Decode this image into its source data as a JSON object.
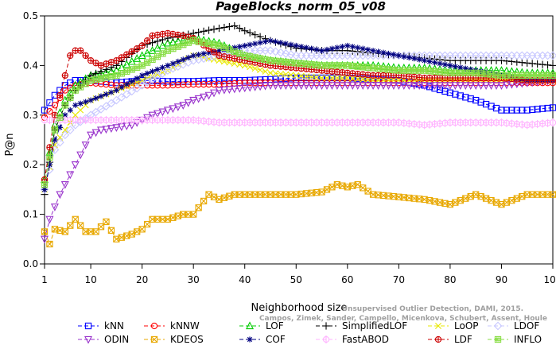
{
  "chart_data": {
    "type": "line",
    "title": "PageBlocks_norm_05_v08",
    "xlabel": "Neighborhood size",
    "ylabel": "P@n",
    "xlim": [
      1,
      100
    ],
    "ylim": [
      0,
      0.5
    ],
    "x_ticks": [
      1,
      10,
      20,
      30,
      40,
      50,
      60,
      70,
      80,
      90,
      100
    ],
    "x_tick_labels": [
      "1",
      "10",
      "20",
      "30",
      "40",
      "50",
      "60",
      "70",
      "80",
      "90",
      "100"
    ],
    "y_ticks": [
      0,
      0.1,
      0.2,
      0.3,
      0.4,
      0.5
    ],
    "y_tick_labels": [
      "0.0",
      "0.1",
      "0.2",
      "0.3",
      "0.4",
      "0.5"
    ],
    "legend_placement": "bottom",
    "watermark_lines": [
      "Unsupervised Outlier Detection, DAMI, 2015.",
      "Campos, Zimek, Sander, Campello, Micenkova, Schubert, Assent, Houle"
    ],
    "series": [
      {
        "name": "kNN",
        "color": "#0000ff",
        "marker": "square",
        "points": [
          [
            1,
            0.31
          ],
          [
            3,
            0.34
          ],
          [
            5,
            0.36
          ],
          [
            7,
            0.37
          ],
          [
            10,
            0.37
          ],
          [
            15,
            0.365
          ],
          [
            20,
            0.37
          ],
          [
            25,
            0.368
          ],
          [
            30,
            0.368
          ],
          [
            35,
            0.37
          ],
          [
            40,
            0.37
          ],
          [
            45,
            0.372
          ],
          [
            50,
            0.375
          ],
          [
            55,
            0.375
          ],
          [
            60,
            0.375
          ],
          [
            65,
            0.372
          ],
          [
            70,
            0.37
          ],
          [
            75,
            0.36
          ],
          [
            80,
            0.345
          ],
          [
            85,
            0.33
          ],
          [
            90,
            0.31
          ],
          [
            95,
            0.31
          ],
          [
            100,
            0.315
          ]
        ]
      },
      {
        "name": "kNNW",
        "color": "#ff0000",
        "marker": "circle",
        "points": [
          [
            1,
            0.295
          ],
          [
            3,
            0.32
          ],
          [
            5,
            0.35
          ],
          [
            7,
            0.36
          ],
          [
            10,
            0.365
          ],
          [
            15,
            0.36
          ],
          [
            20,
            0.36
          ],
          [
            25,
            0.36
          ],
          [
            30,
            0.362
          ],
          [
            35,
            0.362
          ],
          [
            40,
            0.365
          ],
          [
            45,
            0.365
          ],
          [
            50,
            0.365
          ],
          [
            55,
            0.365
          ],
          [
            60,
            0.365
          ],
          [
            65,
            0.365
          ],
          [
            70,
            0.365
          ],
          [
            75,
            0.365
          ],
          [
            80,
            0.365
          ],
          [
            85,
            0.365
          ],
          [
            90,
            0.365
          ],
          [
            95,
            0.365
          ],
          [
            100,
            0.365
          ]
        ]
      },
      {
        "name": "LOF",
        "color": "#00cc00",
        "marker": "triangle-up",
        "points": [
          [
            1,
            0.17
          ],
          [
            3,
            0.28
          ],
          [
            5,
            0.33
          ],
          [
            7,
            0.36
          ],
          [
            10,
            0.38
          ],
          [
            15,
            0.39
          ],
          [
            20,
            0.42
          ],
          [
            25,
            0.445
          ],
          [
            30,
            0.455
          ],
          [
            35,
            0.445
          ],
          [
            40,
            0.42
          ],
          [
            45,
            0.41
          ],
          [
            50,
            0.405
          ],
          [
            55,
            0.4
          ],
          [
            60,
            0.4
          ],
          [
            65,
            0.4
          ],
          [
            70,
            0.395
          ],
          [
            75,
            0.395
          ],
          [
            80,
            0.39
          ],
          [
            85,
            0.39
          ],
          [
            90,
            0.39
          ],
          [
            95,
            0.385
          ],
          [
            100,
            0.385
          ]
        ]
      },
      {
        "name": "SimplifiedLOF",
        "color": "#000000",
        "marker": "plus",
        "points": [
          [
            1,
            0.14
          ],
          [
            3,
            0.27
          ],
          [
            5,
            0.32
          ],
          [
            7,
            0.35
          ],
          [
            10,
            0.38
          ],
          [
            15,
            0.4
          ],
          [
            20,
            0.44
          ],
          [
            25,
            0.455
          ],
          [
            30,
            0.465
          ],
          [
            35,
            0.475
          ],
          [
            38,
            0.48
          ],
          [
            40,
            0.47
          ],
          [
            45,
            0.45
          ],
          [
            50,
            0.435
          ],
          [
            55,
            0.43
          ],
          [
            60,
            0.43
          ],
          [
            65,
            0.425
          ],
          [
            70,
            0.42
          ],
          [
            75,
            0.415
          ],
          [
            80,
            0.41
          ],
          [
            85,
            0.41
          ],
          [
            90,
            0.41
          ],
          [
            95,
            0.405
          ],
          [
            100,
            0.4
          ]
        ]
      },
      {
        "name": "LoOP",
        "color": "#e8e800",
        "marker": "x",
        "points": [
          [
            1,
            0.15
          ],
          [
            3,
            0.24
          ],
          [
            5,
            0.27
          ],
          [
            7,
            0.3
          ],
          [
            10,
            0.33
          ],
          [
            15,
            0.35
          ],
          [
            20,
            0.37
          ],
          [
            25,
            0.39
          ],
          [
            30,
            0.42
          ],
          [
            35,
            0.41
          ],
          [
            40,
            0.4
          ],
          [
            45,
            0.385
          ],
          [
            50,
            0.38
          ],
          [
            55,
            0.375
          ],
          [
            60,
            0.375
          ],
          [
            65,
            0.37
          ],
          [
            70,
            0.37
          ],
          [
            75,
            0.37
          ],
          [
            80,
            0.37
          ],
          [
            85,
            0.37
          ],
          [
            90,
            0.37
          ],
          [
            95,
            0.37
          ],
          [
            100,
            0.37
          ]
        ]
      },
      {
        "name": "LDOF",
        "color": "#c8c8ff",
        "marker": "diamond",
        "points": [
          [
            1,
            0.15
          ],
          [
            3,
            0.23
          ],
          [
            5,
            0.26
          ],
          [
            7,
            0.28
          ],
          [
            10,
            0.3
          ],
          [
            15,
            0.33
          ],
          [
            20,
            0.36
          ],
          [
            25,
            0.39
          ],
          [
            30,
            0.41
          ],
          [
            35,
            0.42
          ],
          [
            40,
            0.43
          ],
          [
            45,
            0.43
          ],
          [
            50,
            0.42
          ],
          [
            55,
            0.42
          ],
          [
            60,
            0.42
          ],
          [
            65,
            0.42
          ],
          [
            70,
            0.42
          ],
          [
            75,
            0.42
          ],
          [
            80,
            0.42
          ],
          [
            85,
            0.42
          ],
          [
            90,
            0.42
          ],
          [
            95,
            0.42
          ],
          [
            100,
            0.42
          ]
        ]
      },
      {
        "name": "ODIN",
        "color": "#9933cc",
        "marker": "triangle-down",
        "points": [
          [
            1,
            0.05
          ],
          [
            2,
            0.09
          ],
          [
            4,
            0.14
          ],
          [
            6,
            0.18
          ],
          [
            8,
            0.22
          ],
          [
            10,
            0.26
          ],
          [
            12,
            0.27
          ],
          [
            15,
            0.275
          ],
          [
            18,
            0.28
          ],
          [
            20,
            0.29
          ],
          [
            22,
            0.3
          ],
          [
            25,
            0.31
          ],
          [
            28,
            0.32
          ],
          [
            30,
            0.33
          ],
          [
            33,
            0.34
          ],
          [
            35,
            0.35
          ],
          [
            40,
            0.355
          ],
          [
            45,
            0.36
          ],
          [
            50,
            0.36
          ],
          [
            55,
            0.36
          ],
          [
            60,
            0.36
          ],
          [
            65,
            0.36
          ],
          [
            70,
            0.36
          ],
          [
            75,
            0.36
          ],
          [
            80,
            0.36
          ],
          [
            85,
            0.36
          ],
          [
            90,
            0.36
          ],
          [
            95,
            0.365
          ],
          [
            100,
            0.37
          ]
        ]
      },
      {
        "name": "KDEOS",
        "color": "#e8a800",
        "marker": "square-x",
        "points": [
          [
            1,
            0.065
          ],
          [
            2,
            0.04
          ],
          [
            3,
            0.07
          ],
          [
            5,
            0.065
          ],
          [
            7,
            0.09
          ],
          [
            9,
            0.065
          ],
          [
            11,
            0.065
          ],
          [
            13,
            0.085
          ],
          [
            15,
            0.05
          ],
          [
            18,
            0.06
          ],
          [
            20,
            0.07
          ],
          [
            22,
            0.09
          ],
          [
            25,
            0.09
          ],
          [
            28,
            0.1
          ],
          [
            30,
            0.1
          ],
          [
            33,
            0.14
          ],
          [
            35,
            0.13
          ],
          [
            38,
            0.14
          ],
          [
            40,
            0.14
          ],
          [
            45,
            0.14
          ],
          [
            50,
            0.14
          ],
          [
            55,
            0.145
          ],
          [
            58,
            0.16
          ],
          [
            60,
            0.155
          ],
          [
            62,
            0.16
          ],
          [
            65,
            0.14
          ],
          [
            70,
            0.135
          ],
          [
            75,
            0.13
          ],
          [
            80,
            0.12
          ],
          [
            85,
            0.14
          ],
          [
            90,
            0.12
          ],
          [
            95,
            0.14
          ],
          [
            100,
            0.14
          ]
        ]
      },
      {
        "name": "COF",
        "color": "#000080",
        "marker": "asterisk",
        "points": [
          [
            1,
            0.15
          ],
          [
            3,
            0.25
          ],
          [
            5,
            0.3
          ],
          [
            7,
            0.32
          ],
          [
            10,
            0.33
          ],
          [
            15,
            0.35
          ],
          [
            20,
            0.38
          ],
          [
            25,
            0.4
          ],
          [
            30,
            0.42
          ],
          [
            35,
            0.43
          ],
          [
            40,
            0.44
          ],
          [
            45,
            0.45
          ],
          [
            50,
            0.44
          ],
          [
            55,
            0.43
          ],
          [
            60,
            0.44
          ],
          [
            65,
            0.43
          ],
          [
            70,
            0.42
          ],
          [
            75,
            0.41
          ],
          [
            80,
            0.4
          ],
          [
            85,
            0.39
          ],
          [
            90,
            0.38
          ],
          [
            95,
            0.37
          ],
          [
            100,
            0.37
          ]
        ]
      },
      {
        "name": "FastABOD",
        "color": "#ffb3ff",
        "marker": "circle-bar",
        "points": [
          [
            1,
            0.29
          ],
          [
            5,
            0.29
          ],
          [
            10,
            0.29
          ],
          [
            15,
            0.29
          ],
          [
            20,
            0.29
          ],
          [
            25,
            0.29
          ],
          [
            30,
            0.29
          ],
          [
            35,
            0.285
          ],
          [
            40,
            0.285
          ],
          [
            45,
            0.285
          ],
          [
            50,
            0.285
          ],
          [
            55,
            0.285
          ],
          [
            60,
            0.285
          ],
          [
            65,
            0.285
          ],
          [
            70,
            0.285
          ],
          [
            75,
            0.28
          ],
          [
            80,
            0.285
          ],
          [
            85,
            0.285
          ],
          [
            90,
            0.285
          ],
          [
            95,
            0.28
          ],
          [
            100,
            0.285
          ]
        ]
      },
      {
        "name": "LDF",
        "color": "#cc0000",
        "marker": "circle-plus",
        "points": [
          [
            1,
            0.17
          ],
          [
            3,
            0.3
          ],
          [
            5,
            0.38
          ],
          [
            6,
            0.42
          ],
          [
            7,
            0.43
          ],
          [
            8,
            0.43
          ],
          [
            10,
            0.41
          ],
          [
            12,
            0.4
          ],
          [
            15,
            0.41
          ],
          [
            20,
            0.44
          ],
          [
            22,
            0.46
          ],
          [
            25,
            0.465
          ],
          [
            28,
            0.46
          ],
          [
            30,
            0.455
          ],
          [
            35,
            0.42
          ],
          [
            40,
            0.41
          ],
          [
            45,
            0.4
          ],
          [
            50,
            0.395
          ],
          [
            55,
            0.39
          ],
          [
            60,
            0.385
          ],
          [
            65,
            0.38
          ],
          [
            70,
            0.38
          ],
          [
            75,
            0.375
          ],
          [
            80,
            0.375
          ],
          [
            85,
            0.375
          ],
          [
            90,
            0.375
          ],
          [
            95,
            0.37
          ],
          [
            100,
            0.37
          ]
        ]
      },
      {
        "name": "INFLO",
        "color": "#88dd44",
        "marker": "square-hash",
        "points": [
          [
            1,
            0.16
          ],
          [
            3,
            0.27
          ],
          [
            5,
            0.32
          ],
          [
            7,
            0.35
          ],
          [
            10,
            0.37
          ],
          [
            15,
            0.38
          ],
          [
            20,
            0.4
          ],
          [
            25,
            0.43
          ],
          [
            30,
            0.45
          ],
          [
            35,
            0.44
          ],
          [
            40,
            0.42
          ],
          [
            45,
            0.41
          ],
          [
            50,
            0.405
          ],
          [
            55,
            0.4
          ],
          [
            60,
            0.4
          ],
          [
            65,
            0.395
          ],
          [
            70,
            0.39
          ],
          [
            75,
            0.39
          ],
          [
            80,
            0.385
          ],
          [
            85,
            0.385
          ],
          [
            90,
            0.38
          ],
          [
            95,
            0.38
          ],
          [
            100,
            0.38
          ]
        ]
      }
    ]
  }
}
